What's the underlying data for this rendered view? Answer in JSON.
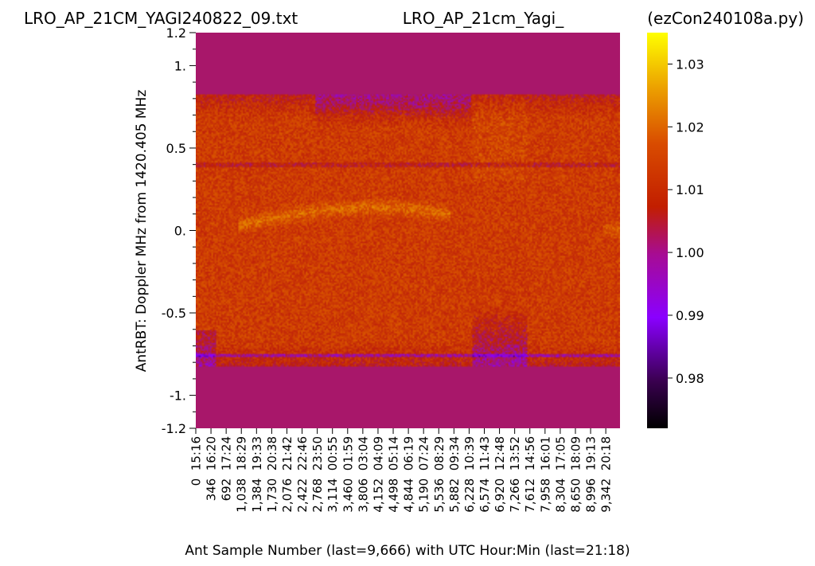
{
  "titles": {
    "left": "LRO_AP_21CM_YAGI240822_09.txt",
    "center": "LRO_AP_21cm_Yagi_",
    "right": "(ezCon240108a.py)"
  },
  "chart_data": {
    "type": "heatmap",
    "xlabel": "Ant Sample Number (last=9,666) with UTC Hour:Min (last=21:18)",
    "ylabel": "AntRBT:  Doppler MHz from 1420.405 MHz",
    "ylim": [
      -1.2,
      1.2
    ],
    "yticks": [
      {
        "value": 1.2,
        "label": "1.2"
      },
      {
        "value": 1.0,
        "label": "1."
      },
      {
        "value": 0.5,
        "label": "0.5"
      },
      {
        "value": 0.0,
        "label": "0."
      },
      {
        "value": -0.5,
        "label": "-0.5"
      },
      {
        "value": -1.0,
        "label": "-1."
      },
      {
        "value": -1.2,
        "label": "-1.2"
      }
    ],
    "xticks": [
      "0  15:16",
      "346  16:20",
      "692  17:24",
      "1,038  18:29",
      "1,384  19:33",
      "1,730  20:38",
      "2,076  21:42",
      "2,422  22:46",
      "2,768  23:50",
      "3,114  00:55",
      "3,460  01:59",
      "3,806  03:04",
      "4,152  04:09",
      "4,498  05:14",
      "4,844  06:19",
      "5,190  07:24",
      "5,536  08:29",
      "5,882  09:34",
      "6,228  10:39",
      "6,574  11:43",
      "6,920  12:48",
      "7,266  13:52",
      "7,612  14:56",
      "7,958  16:01",
      "8,304  17:05",
      "8,650  18:09",
      "8,996  19:13",
      "9,342  20:18"
    ],
    "x_last": 9666,
    "colorbar": {
      "ticks": [
        "0.98",
        "0.99",
        "1.00",
        "1.01",
        "1.02",
        "1.03"
      ],
      "range": [
        0.972,
        1.035
      ],
      "colormap": "gnuplot"
    },
    "grid": false
  }
}
